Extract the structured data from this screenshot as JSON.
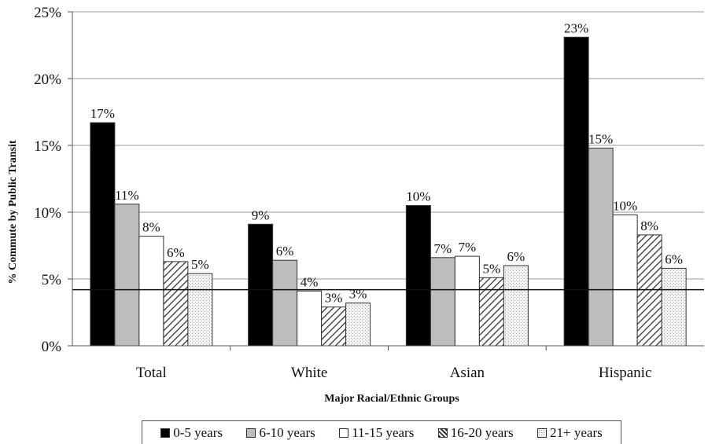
{
  "chart_data": {
    "type": "bar",
    "title": "",
    "xlabel": "Major Racial/Ethnic Groups",
    "ylabel": "% Commute by Public Transit",
    "categories": [
      "Total",
      "White",
      "Asian",
      "Hispanic"
    ],
    "ylim": [
      0,
      25
    ],
    "yticks": [
      "0%",
      "5%",
      "10%",
      "15%",
      "20%",
      "25%"
    ],
    "grid": true,
    "reference_line": 4.2,
    "legend_position": "bottom",
    "series": [
      {
        "name": "0-5 years",
        "values": [
          16.7,
          9.1,
          10.5,
          23.1
        ],
        "labels": [
          "17%",
          "9%",
          "10%",
          "23%"
        ],
        "color": "#000000",
        "pattern": "solid"
      },
      {
        "name": "6-10 years",
        "values": [
          10.6,
          6.4,
          6.6,
          14.8
        ],
        "labels": [
          "11%",
          "6%",
          "7%",
          "15%"
        ],
        "color": "#bdbdbd",
        "pattern": "solid"
      },
      {
        "name": "11-15 years",
        "values": [
          8.2,
          4.1,
          6.7,
          9.8
        ],
        "labels": [
          "8%",
          "4%",
          "7%",
          "10%"
        ],
        "color": "#ffffff",
        "pattern": "solid"
      },
      {
        "name": "16-20 years",
        "values": [
          6.3,
          2.9,
          5.1,
          8.3
        ],
        "labels": [
          "6%",
          "3%",
          "5%",
          "8%"
        ],
        "color": "#333333",
        "pattern": "diagonal-hatch"
      },
      {
        "name": "21+ years",
        "values": [
          5.4,
          3.2,
          6.0,
          5.8
        ],
        "labels": [
          "5%",
          "3%",
          "6%",
          "6%"
        ],
        "color": "#f4f4f4",
        "pattern": "dots"
      }
    ]
  }
}
